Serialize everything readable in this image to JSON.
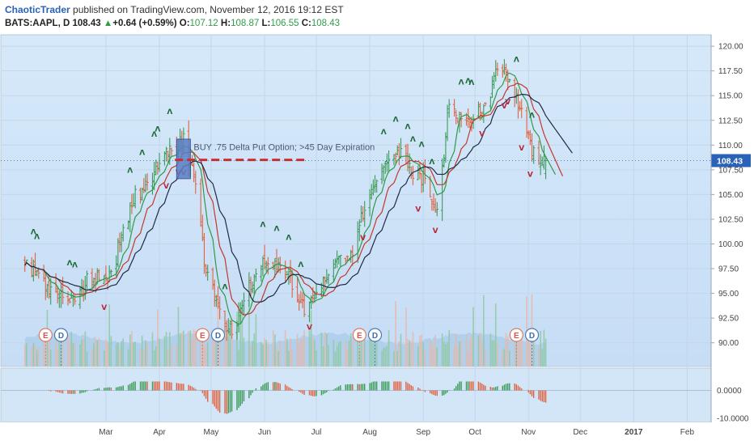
{
  "header": {
    "author": "ChaoticTrader",
    "published_text": "published on TradingView.com, November 12, 2016 19:12 EST",
    "symbol": "BATS:AAPL, D",
    "last": "108.43",
    "change": "+0.64 (+0.59%)",
    "open_label": "O:",
    "open": "107.12",
    "high_label": "H:",
    "high": "108.87",
    "low_label": "L:",
    "low": "106.55",
    "close_label": "C:",
    "close": "108.43"
  },
  "colors": {
    "background": "#cfe4f8",
    "up": "#3c9a57",
    "down": "#e0623f",
    "fast_ma": "#2f9a46",
    "mid_ma": "#c0392b",
    "slow_ma": "#1f2a44",
    "volume": "#a8cbe8",
    "annotation_line": "#d22b2b",
    "highlight_box": "#5b7fc4",
    "price_label": "#2962b8"
  },
  "chart_data": {
    "type": "line",
    "title": "",
    "price_axis": {
      "ylim": [
        88.5,
        121.0
      ],
      "ticks": [
        "120.00",
        "117.50",
        "115.00",
        "112.50",
        "110.00",
        "107.50",
        "105.00",
        "102.50",
        "100.00",
        "97.50",
        "95.00",
        "92.50",
        "90.00"
      ]
    },
    "x_ticks": [
      "Mar",
      "Apr",
      "May",
      "Jun",
      "Jul",
      "Aug",
      "Sep",
      "Oct",
      "Nov",
      "Dec",
      "2017",
      "Feb"
    ],
    "last_price_label": "108.43",
    "oscillator_axis": {
      "ylim": [
        -11.5,
        3.5
      ],
      "ticks": [
        "0.0000",
        "-10.0000"
      ]
    },
    "annotation": {
      "text": "BUY .75 Delta Put Option; >45 Day Expiration",
      "price": 108.5,
      "from_date": "2016-04-10",
      "to_date": "2016-06-24"
    },
    "highlight_box": {
      "from_date": "2016-04-11",
      "to_date": "2016-04-19",
      "price_low": 106.6,
      "price_high": 110.6
    },
    "event_markers": [
      {
        "label": "E",
        "date": "2016-01-26"
      },
      {
        "label": "D",
        "date": "2016-02-04"
      },
      {
        "label": "E",
        "date": "2016-04-26"
      },
      {
        "label": "D",
        "date": "2016-05-05"
      },
      {
        "label": "E",
        "date": "2016-07-26"
      },
      {
        "label": "D",
        "date": "2016-08-04"
      },
      {
        "label": "E",
        "date": "2016-10-25"
      },
      {
        "label": "D",
        "date": "2016-11-03"
      }
    ],
    "price_anchors": [
      {
        "date": "2016-01-14",
        "value": 98.0
      },
      {
        "date": "2016-01-22",
        "value": 96.5
      },
      {
        "date": "2016-01-29",
        "value": 95.0
      },
      {
        "date": "2016-02-05",
        "value": 95.2
      },
      {
        "date": "2016-02-12",
        "value": 94.0
      },
      {
        "date": "2016-02-19",
        "value": 96.2
      },
      {
        "date": "2016-02-26",
        "value": 96.7
      },
      {
        "date": "2016-03-04",
        "value": 96.5
      },
      {
        "date": "2016-03-11",
        "value": 101.5
      },
      {
        "date": "2016-03-18",
        "value": 105.0
      },
      {
        "date": "2016-03-25",
        "value": 105.8
      },
      {
        "date": "2016-04-01",
        "value": 108.5
      },
      {
        "date": "2016-04-08",
        "value": 109.5
      },
      {
        "date": "2016-04-15",
        "value": 110.5
      },
      {
        "date": "2016-04-22",
        "value": 106.0
      },
      {
        "date": "2016-04-28",
        "value": 97.0
      },
      {
        "date": "2016-05-06",
        "value": 93.0
      },
      {
        "date": "2016-05-13",
        "value": 91.0
      },
      {
        "date": "2016-05-20",
        "value": 94.5
      },
      {
        "date": "2016-05-27",
        "value": 97.0
      },
      {
        "date": "2016-06-03",
        "value": 98.5
      },
      {
        "date": "2016-06-10",
        "value": 98.0
      },
      {
        "date": "2016-06-17",
        "value": 96.0
      },
      {
        "date": "2016-06-24",
        "value": 93.5
      },
      {
        "date": "2016-07-01",
        "value": 95.5
      },
      {
        "date": "2016-07-08",
        "value": 96.5
      },
      {
        "date": "2016-07-15",
        "value": 98.5
      },
      {
        "date": "2016-07-22",
        "value": 98.5
      },
      {
        "date": "2016-07-29",
        "value": 104.0
      },
      {
        "date": "2016-08-05",
        "value": 106.5
      },
      {
        "date": "2016-08-12",
        "value": 108.0
      },
      {
        "date": "2016-08-19",
        "value": 109.5
      },
      {
        "date": "2016-08-26",
        "value": 107.0
      },
      {
        "date": "2016-09-02",
        "value": 106.5
      },
      {
        "date": "2016-09-09",
        "value": 103.5
      },
      {
        "date": "2016-09-16",
        "value": 114.0
      },
      {
        "date": "2016-09-23",
        "value": 112.5
      },
      {
        "date": "2016-09-30",
        "value": 113.0
      },
      {
        "date": "2016-10-07",
        "value": 114.0
      },
      {
        "date": "2016-10-14",
        "value": 117.5
      },
      {
        "date": "2016-10-21",
        "value": 117.0
      },
      {
        "date": "2016-10-28",
        "value": 113.0
      },
      {
        "date": "2016-11-04",
        "value": 109.0
      },
      {
        "date": "2016-11-11",
        "value": 108.43
      }
    ],
    "series": [
      {
        "values_from": "price_anchors",
        "smoothing_days": 8,
        "color_key": "fast_ma"
      },
      {
        "values_from": "price_anchors",
        "smoothing_days": 14,
        "color_key": "mid_ma"
      },
      {
        "values_from": "price_anchors",
        "smoothing_days": 22,
        "color_key": "slow_ma"
      }
    ],
    "buy_signals": [
      "2016-01-19",
      "2016-01-21",
      "2016-02-09",
      "2016-02-12",
      "2016-03-15",
      "2016-03-22",
      "2016-03-29",
      "2016-03-31",
      "2016-04-07",
      "2016-05-09",
      "2016-05-31",
      "2016-06-08",
      "2016-06-15",
      "2016-06-22",
      "2016-08-09",
      "2016-08-16",
      "2016-08-23",
      "2016-08-26",
      "2016-08-31",
      "2016-09-06",
      "2016-09-23",
      "2016-09-27",
      "2016-09-29",
      "2016-10-25",
      "2016-11-03"
    ],
    "sell_signals": [
      "2016-02-29",
      "2016-04-05",
      "2016-04-12",
      "2016-04-15",
      "2016-06-27",
      "2016-07-28",
      "2016-08-29",
      "2016-09-08",
      "2016-10-05",
      "2016-10-18",
      "2016-10-20",
      "2016-10-28",
      "2016-11-02"
    ]
  }
}
